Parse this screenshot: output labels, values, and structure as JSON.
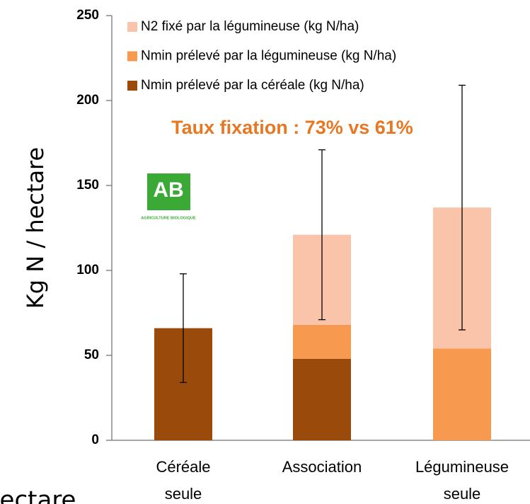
{
  "chart_data": {
    "type": "stacked_bar",
    "ylabel": "Kg N / hectare",
    "annotation": "Taux fixation : 73% vs 61%",
    "cropped_text": "hectare",
    "logo": {
      "text": "AB",
      "subtext": "AGRICULTURE BIOLOGIQUE"
    },
    "categories": [
      "Céréale seule",
      "Association",
      "Légumineuse seule"
    ],
    "series": [
      {
        "name": "N2 fixé par la légumineuse (kg N/ha)",
        "color": "#f9c4a9",
        "values": [
          0,
          53,
          83
        ],
        "errors": [
          null,
          50,
          72
        ]
      },
      {
        "name": "Nmin prélevé par la légumineuse (kg N/ha)",
        "color": "#f79a4f",
        "values": [
          0,
          20,
          54
        ],
        "errors": [
          null,
          null,
          null
        ]
      },
      {
        "name": "Nmin prélevé par la céréale (kg N/ha)",
        "color": "#9a4a0b",
        "values": [
          66,
          48,
          0
        ],
        "errors": [
          32,
          null,
          null
        ]
      }
    ],
    "ylim": [
      0,
      250
    ],
    "yticks": [
      0,
      50,
      100,
      150,
      200,
      250
    ],
    "grid": false
  }
}
